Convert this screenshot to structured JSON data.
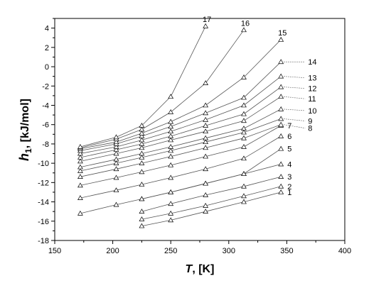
{
  "chart_data": {
    "type": "line",
    "xlabel": {
      "main": "T",
      "unit": ", [K]"
    },
    "ylabel": {
      "main": "h",
      "sub": "1",
      "unit": ", [kJ/mol]"
    },
    "xlim": [
      150,
      400
    ],
    "ylim": [
      -18,
      5
    ],
    "xticks": [
      150,
      200,
      250,
      300,
      350,
      400
    ],
    "yticks": [
      -18,
      -16,
      -14,
      -12,
      -10,
      -8,
      -6,
      -4,
      -2,
      0,
      2,
      4
    ],
    "series": [
      {
        "name": "1",
        "points": [
          [
            225,
            -16.5
          ],
          [
            250,
            -15.9
          ],
          [
            280,
            -15.0
          ],
          [
            313,
            -14.0
          ],
          [
            345,
            -13.0
          ]
        ]
      },
      {
        "name": "2",
        "points": [
          [
            225,
            -15.8
          ],
          [
            250,
            -15.2
          ],
          [
            280,
            -14.4
          ],
          [
            313,
            -13.4
          ],
          [
            345,
            -12.4
          ]
        ]
      },
      {
        "name": "3",
        "points": [
          [
            225,
            -15.0
          ],
          [
            250,
            -14.2
          ],
          [
            280,
            -13.3
          ],
          [
            313,
            -12.4
          ],
          [
            345,
            -11.4
          ]
        ]
      },
      {
        "name": "4",
        "points": [
          [
            225,
            -13.7
          ],
          [
            250,
            -13.0
          ],
          [
            280,
            -12.1
          ],
          [
            313,
            -11.1
          ],
          [
            345,
            -10.1
          ]
        ]
      },
      {
        "name": "5",
        "points": [
          [
            172,
            -15.2
          ],
          [
            203,
            -14.3
          ],
          [
            225,
            -13.7
          ],
          [
            250,
            -13.0
          ],
          [
            280,
            -12.1
          ],
          [
            313,
            -11.1
          ],
          [
            345,
            -8.5
          ]
        ]
      },
      {
        "name": "6",
        "points": [
          [
            172,
            -13.6
          ],
          [
            203,
            -12.8
          ],
          [
            225,
            -12.2
          ],
          [
            250,
            -11.5
          ],
          [
            280,
            -10.6
          ],
          [
            313,
            -9.5
          ],
          [
            345,
            -7.2
          ]
        ]
      },
      {
        "name": "7",
        "points": [
          [
            172,
            -12.3
          ],
          [
            203,
            -11.5
          ],
          [
            225,
            -10.9
          ],
          [
            250,
            -10.2
          ],
          [
            280,
            -9.3
          ],
          [
            313,
            -8.3
          ],
          [
            345,
            -6.1
          ]
        ]
      },
      {
        "name": "8",
        "points": [
          [
            172,
            -11.4
          ],
          [
            203,
            -10.6
          ],
          [
            225,
            -10.0
          ],
          [
            250,
            -9.3
          ],
          [
            280,
            -8.4
          ],
          [
            313,
            -7.4
          ],
          [
            345,
            -6.0
          ]
        ]
      },
      {
        "name": "9",
        "points": [
          [
            172,
            -10.8
          ],
          [
            203,
            -10.0
          ],
          [
            225,
            -9.4
          ],
          [
            250,
            -8.7
          ],
          [
            280,
            -7.8
          ],
          [
            313,
            -6.8
          ],
          [
            345,
            -5.4
          ]
        ]
      },
      {
        "name": "10",
        "points": [
          [
            172,
            -10.4
          ],
          [
            203,
            -9.6
          ],
          [
            225,
            -9.0
          ],
          [
            250,
            -8.3
          ],
          [
            280,
            -7.4
          ],
          [
            313,
            -6.4
          ],
          [
            345,
            -4.4
          ]
        ]
      },
      {
        "name": "11",
        "points": [
          [
            172,
            -9.8
          ],
          [
            203,
            -9.0
          ],
          [
            225,
            -8.4
          ],
          [
            250,
            -7.6
          ],
          [
            280,
            -6.7
          ],
          [
            313,
            -5.6
          ],
          [
            345,
            -3.1
          ]
        ]
      },
      {
        "name": "12",
        "points": [
          [
            172,
            -9.4
          ],
          [
            203,
            -8.6
          ],
          [
            225,
            -8.0
          ],
          [
            250,
            -7.2
          ],
          [
            280,
            -6.1
          ],
          [
            313,
            -4.9
          ],
          [
            345,
            -2.1
          ]
        ]
      },
      {
        "name": "13",
        "points": [
          [
            172,
            -9.0
          ],
          [
            203,
            -8.3
          ],
          [
            225,
            -7.6
          ],
          [
            250,
            -6.7
          ],
          [
            280,
            -5.5
          ],
          [
            313,
            -4.0
          ],
          [
            345,
            -1.0
          ]
        ]
      },
      {
        "name": "14",
        "points": [
          [
            172,
            -8.7
          ],
          [
            203,
            -8.0
          ],
          [
            225,
            -7.2
          ],
          [
            250,
            -6.2
          ],
          [
            280,
            -4.8
          ],
          [
            313,
            -3.2
          ],
          [
            345,
            0.5
          ]
        ]
      },
      {
        "name": "15",
        "points": [
          [
            172,
            -8.5
          ],
          [
            203,
            -7.8
          ],
          [
            225,
            -6.9
          ],
          [
            250,
            -5.7
          ],
          [
            280,
            -4.0
          ],
          [
            313,
            -1.1
          ],
          [
            345,
            2.8
          ]
        ]
      },
      {
        "name": "16",
        "points": [
          [
            172,
            -8.4
          ],
          [
            203,
            -7.5
          ],
          [
            225,
            -6.5
          ],
          [
            250,
            -4.7
          ],
          [
            280,
            -1.7
          ],
          [
            313,
            3.8
          ]
        ]
      },
      {
        "name": "17",
        "points": [
          [
            172,
            -8.3
          ],
          [
            203,
            -7.3
          ],
          [
            225,
            -6.1
          ],
          [
            250,
            -3.1
          ],
          [
            280,
            4.2
          ]
        ]
      }
    ]
  }
}
